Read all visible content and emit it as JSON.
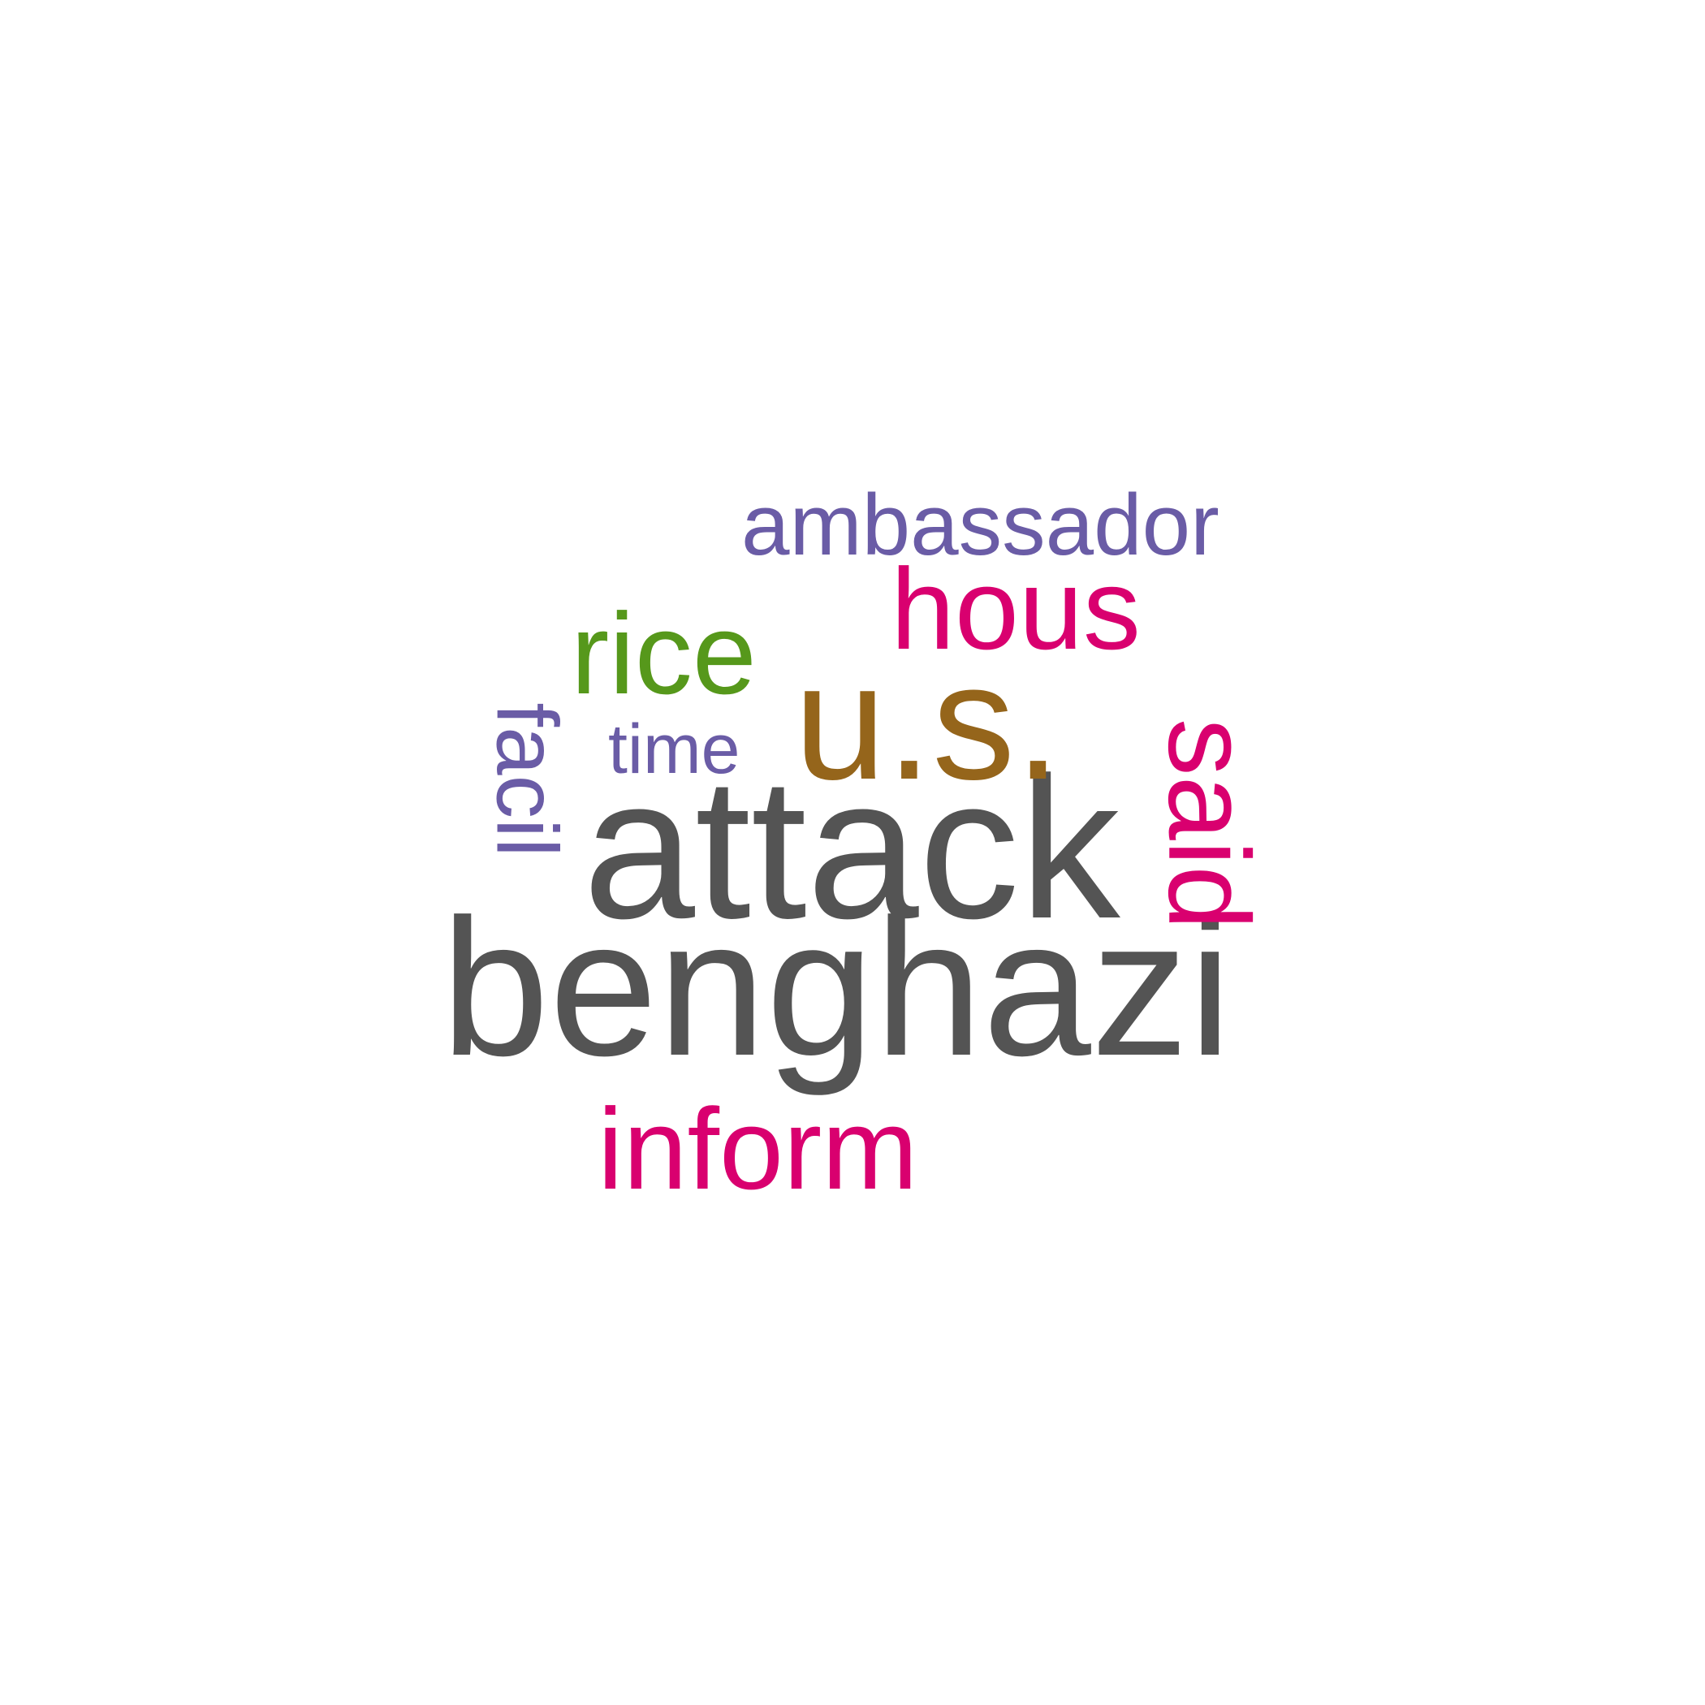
{
  "words": [
    {
      "text": "benghazi",
      "color": "#545454"
    },
    {
      "text": "attack",
      "color": "#545454"
    },
    {
      "text": "u.s.",
      "color": "#95651b"
    },
    {
      "text": "hous",
      "color": "#d9006f"
    },
    {
      "text": "rice",
      "color": "#56981b"
    },
    {
      "text": "said",
      "color": "#d9006f"
    },
    {
      "text": "inform",
      "color": "#d9006f"
    },
    {
      "text": "ambassador",
      "color": "#6a5ca6"
    },
    {
      "text": "facil",
      "color": "#6a5ca6"
    },
    {
      "text": "time",
      "color": "#6a5ca6"
    }
  ]
}
